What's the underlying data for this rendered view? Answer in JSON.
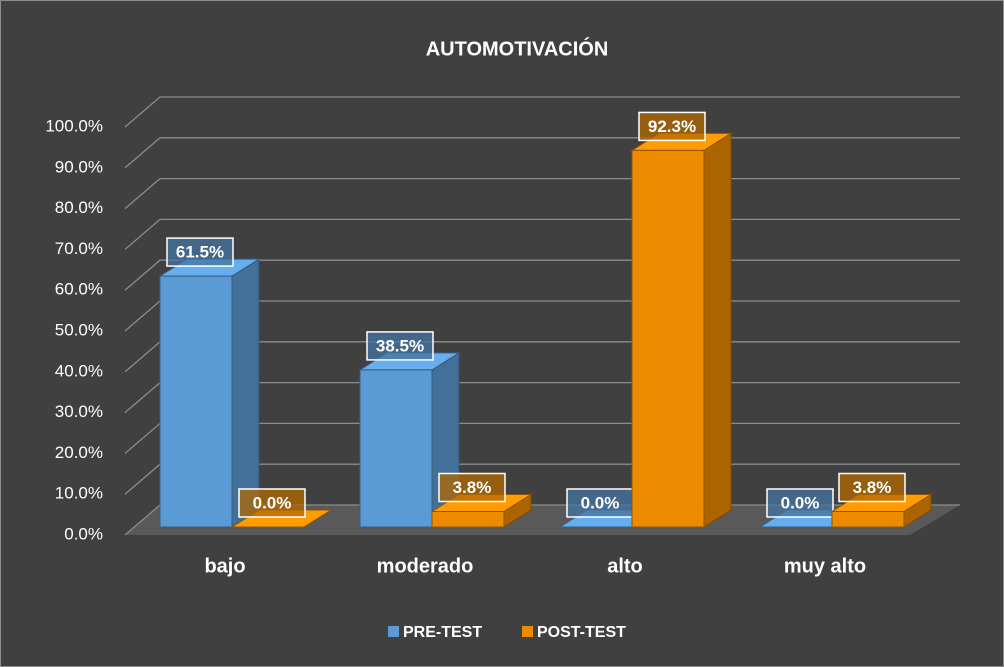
{
  "chart_data": {
    "type": "bar3d",
    "title": "AUTOMOTIVACIÓN",
    "categories": [
      "bajo",
      "moderado",
      "alto",
      "muy alto"
    ],
    "series": [
      {
        "name": "PRE-TEST",
        "color": "#5b9bd5",
        "values": [
          61.5,
          38.5,
          0,
          0
        ],
        "value_labels": [
          "61.5%",
          "38.5%",
          "0.0%",
          "0.0%"
        ]
      },
      {
        "name": "POST-TEST",
        "color": "#ed8b00",
        "values": [
          0,
          3.8,
          92.3,
          3.8
        ],
        "value_labels": [
          "0.0%",
          "3.8%",
          "92.3%",
          "3.8%"
        ]
      }
    ],
    "ylim": [
      0,
      100
    ],
    "yticks": [
      {
        "value": 0,
        "label": "0.0%"
      },
      {
        "value": 10,
        "label": "10.0%"
      },
      {
        "value": 20,
        "label": "20.0%"
      },
      {
        "value": 30,
        "label": "30.0%"
      },
      {
        "value": 40,
        "label": "40.0%"
      },
      {
        "value": 50,
        "label": "50.0%"
      },
      {
        "value": 60,
        "label": "60.0%"
      },
      {
        "value": 70,
        "label": "70.0%"
      },
      {
        "value": 80,
        "label": "80.0%"
      },
      {
        "value": 90,
        "label": "90.0%"
      },
      {
        "value": 100,
        "label": "100.0%"
      }
    ],
    "grid": true,
    "legend": "bottom"
  }
}
